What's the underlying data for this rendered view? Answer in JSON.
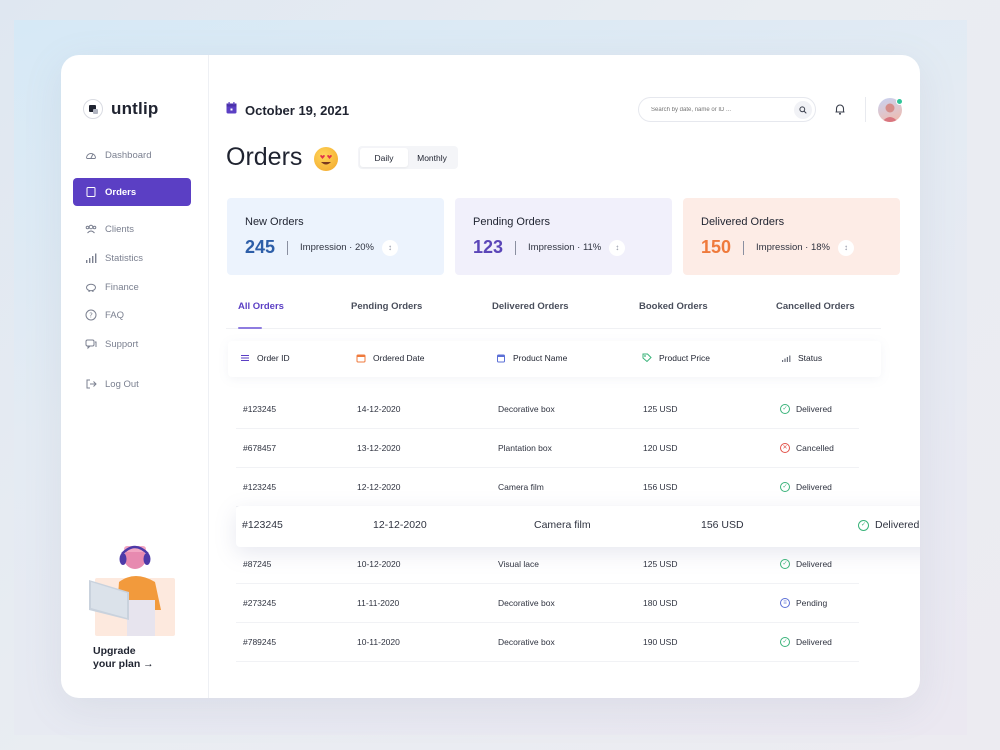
{
  "app": {
    "logo_text": "untlip"
  },
  "sidebar": {
    "items": [
      {
        "label": "Dashboard",
        "icon": "dashboard-icon"
      },
      {
        "label": "Orders",
        "icon": "orders-icon",
        "active": true
      },
      {
        "label": "Clients",
        "icon": "clients-icon"
      },
      {
        "label": "Statistics",
        "icon": "statistics-icon"
      },
      {
        "label": "Finance",
        "icon": "finance-icon"
      },
      {
        "label": "FAQ",
        "icon": "faq-icon"
      },
      {
        "label": "Support",
        "icon": "support-icon"
      },
      {
        "label": "Log Out",
        "icon": "logout-icon"
      }
    ],
    "upgrade": {
      "line1": "Upgrade",
      "line2": "your plan →"
    }
  },
  "header": {
    "date": "October 19, 2021",
    "search_placeholder": "Search by date, name or ID ..."
  },
  "page": {
    "title": "Orders",
    "toggle": {
      "options": [
        "Daily",
        "Monthly"
      ],
      "selected": "Daily"
    }
  },
  "stats": [
    {
      "title": "New Orders",
      "value": "245",
      "impression": "Impression · 20%",
      "color": "#2d5ea8",
      "bg": "#ecf3fd"
    },
    {
      "title": "Pending Orders",
      "value": "123",
      "impression": "Impression · 11%",
      "color": "#5b46b8",
      "bg": "#f1f0fb"
    },
    {
      "title": "Delivered Orders",
      "value": "150",
      "impression": "Impression · 18%",
      "color": "#ef7a3c",
      "bg": "#fdece6"
    }
  ],
  "tabs": [
    "All Orders",
    "Pending Orders",
    "Delivered Orders",
    "Booked Orders",
    "Cancelled Orders"
  ],
  "table": {
    "columns": [
      {
        "label": "Order ID",
        "icon": "list-icon"
      },
      {
        "label": "Ordered Date",
        "icon": "calendar-icon"
      },
      {
        "label": "Product Name",
        "icon": "box-icon"
      },
      {
        "label": "Product Price",
        "icon": "tag-icon"
      },
      {
        "label": "Status",
        "icon": "signal-icon"
      }
    ],
    "rows": [
      {
        "id": "#123245",
        "date": "14-12-2020",
        "product": "Decorative box",
        "price": "125 USD",
        "status": "Delivered"
      },
      {
        "id": "#678457",
        "date": "13-12-2020",
        "product": "Plantation box",
        "price": "120 USD",
        "status": "Cancelled"
      },
      {
        "id": "#123245",
        "date": "12-12-2020",
        "product": "Camera film",
        "price": "156 USD",
        "status": "Delivered"
      },
      {
        "id": "#123245",
        "date": "12-12-2020",
        "product": "Camera film",
        "price": "156 USD",
        "status": "Delivered"
      },
      {
        "id": "#87245",
        "date": "10-12-2020",
        "product": "Visual lace",
        "price": "125 USD",
        "status": "Delivered"
      },
      {
        "id": "#273245",
        "date": "11-11-2020",
        "product": "Decorative box",
        "price": "180 USD",
        "status": "Pending"
      },
      {
        "id": "#789245",
        "date": "10-11-2020",
        "product": "Decorative box",
        "price": "190 USD",
        "status": "Delivered"
      }
    ]
  },
  "colors": {
    "accent": "#5b3fc4",
    "delivered": "#3ab37a",
    "cancelled": "#e2534a",
    "pending": "#5b6fd6"
  }
}
